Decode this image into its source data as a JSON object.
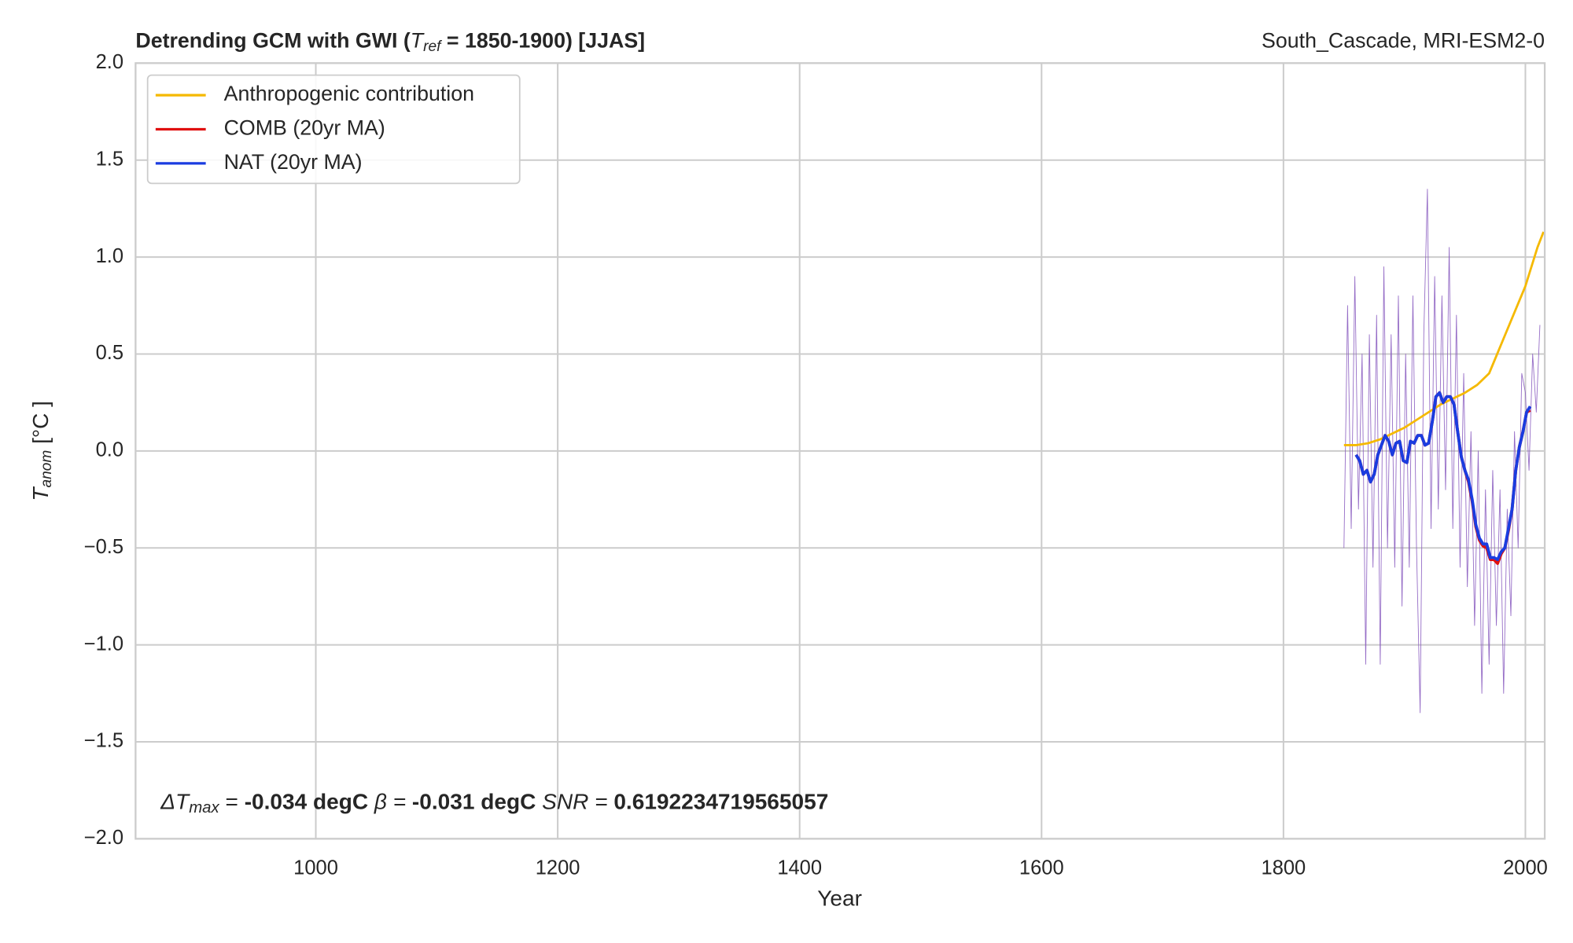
{
  "chart_data": {
    "type": "line",
    "title_parts": [
      "Detrending GCM with GWI (",
      "T",
      "ref",
      " = 1850-1900) [JJAS]"
    ],
    "right_title": "South_Cascade, MRI-ESM2-0",
    "x_label": "Year",
    "y_label_parts": [
      "T",
      "anom",
      " [°C ]"
    ],
    "annotation_parts": [
      "ΔT",
      "max",
      " = ",
      "-0.034 degC",
      " β = ",
      "-0.031 degC",
      " SNR = ",
      " 0.6192234719565057"
    ],
    "xlim": [
      851,
      2016
    ],
    "ylim": [
      -2,
      2
    ],
    "xticks": [
      1000,
      1200,
      1400,
      1600,
      1800,
      2000
    ],
    "yticks": [
      {
        "value": -2,
        "label": "−2.0"
      },
      {
        "value": -1.5,
        "label": "−1.5"
      },
      {
        "value": -1,
        "label": "−1.0"
      },
      {
        "value": -0.5,
        "label": "−0.5"
      },
      {
        "value": 0,
        "label": "0.0"
      },
      {
        "value": 0.5,
        "label": "0.5"
      },
      {
        "value": 1,
        "label": "1.0"
      },
      {
        "value": 1.5,
        "label": "1.5"
      },
      {
        "value": 2,
        "label": "2.0"
      }
    ],
    "grid": true,
    "legend": "upper left",
    "series": [
      {
        "color": "#8a5cc0",
        "x": [
          1850,
          1853,
          1856,
          1859,
          1862,
          1865,
          1868,
          1871,
          1874,
          1877,
          1880,
          1883,
          1886,
          1889,
          1892,
          1895,
          1898,
          1901,
          1904,
          1907,
          1910,
          1913,
          1916,
          1919,
          1922,
          1925,
          1928,
          1931,
          1934,
          1937,
          1940,
          1943,
          1946,
          1949,
          1952,
          1955,
          1958,
          1961,
          1964,
          1967,
          1970,
          1973,
          1976,
          1979,
          1982,
          1985,
          1988,
          1991,
          1994,
          1997,
          2000,
          2003,
          2006,
          2009,
          2012
        ],
        "values": [
          -0.5,
          0.75,
          -0.4,
          0.9,
          -0.3,
          0.5,
          -1.1,
          0.6,
          -0.6,
          0.7,
          -1.1,
          0.95,
          -0.5,
          0.6,
          -0.6,
          0.8,
          -0.8,
          0.5,
          -0.6,
          0.8,
          -0.5,
          -1.35,
          0.6,
          1.35,
          -0.4,
          0.9,
          -0.3,
          0.8,
          -0.2,
          1.05,
          -0.4,
          0.7,
          -0.6,
          0.4,
          -0.7,
          0.1,
          -0.9,
          0.0,
          -1.25,
          -0.2,
          -1.1,
          -0.1,
          -0.9,
          -0.2,
          -1.25,
          -0.3,
          -0.85,
          0.1,
          -0.5,
          0.4,
          0.3,
          -0.1,
          0.5,
          0.2,
          0.65
        ]
      },
      {
        "name": "Anthropogenic contribution",
        "color": "#f5b900",
        "x": [
          1850,
          1860,
          1870,
          1880,
          1890,
          1900,
          1910,
          1920,
          1930,
          1940,
          1950,
          1960,
          1970,
          1980,
          1990,
          2000,
          2010,
          2015
        ],
        "values": [
          0.03,
          0.03,
          0.04,
          0.06,
          0.09,
          0.12,
          0.16,
          0.2,
          0.24,
          0.27,
          0.3,
          0.34,
          0.4,
          0.55,
          0.7,
          0.85,
          1.05,
          1.13
        ]
      },
      {
        "name": "COMB (20yr MA)",
        "color": "#e01010",
        "x": [
          1860,
          1863,
          1866,
          1869,
          1872,
          1875,
          1878,
          1881,
          1884,
          1887,
          1890,
          1893,
          1896,
          1899,
          1902,
          1905,
          1908,
          1911,
          1914,
          1917,
          1920,
          1923,
          1926,
          1929,
          1932,
          1935,
          1938,
          1941,
          1944,
          1947,
          1950,
          1953,
          1956,
          1959,
          1962,
          1965,
          1968,
          1971,
          1974,
          1977,
          1980,
          1983,
          1986,
          1989,
          1992,
          1995,
          1998,
          2001,
          2004
        ],
        "values": [
          -0.02,
          -0.05,
          -0.12,
          -0.1,
          -0.16,
          -0.12,
          -0.02,
          0.03,
          0.08,
          0.05,
          -0.02,
          0.04,
          0.05,
          -0.05,
          -0.06,
          0.05,
          0.04,
          0.08,
          0.08,
          0.03,
          0.04,
          0.15,
          0.28,
          0.3,
          0.25,
          0.28,
          0.28,
          0.24,
          0.1,
          -0.03,
          -0.1,
          -0.16,
          -0.26,
          -0.39,
          -0.46,
          -0.49,
          -0.5,
          -0.56,
          -0.56,
          -0.58,
          -0.53,
          -0.5,
          -0.41,
          -0.3,
          -0.1,
          0.02,
          0.1,
          0.2,
          0.21
        ]
      },
      {
        "name": "NAT (20yr MA)",
        "color": "#1a3ce0",
        "x": [
          1860,
          1863,
          1866,
          1869,
          1872,
          1875,
          1878,
          1881,
          1884,
          1887,
          1890,
          1893,
          1896,
          1899,
          1902,
          1905,
          1908,
          1911,
          1914,
          1917,
          1920,
          1923,
          1926,
          1929,
          1932,
          1935,
          1938,
          1941,
          1944,
          1947,
          1950,
          1953,
          1956,
          1959,
          1962,
          1965,
          1968,
          1971,
          1974,
          1977,
          1980,
          1983,
          1986,
          1989,
          1992,
          1995,
          1998,
          2001,
          2004
        ],
        "values": [
          -0.02,
          -0.05,
          -0.12,
          -0.1,
          -0.16,
          -0.12,
          -0.02,
          0.03,
          0.08,
          0.05,
          -0.02,
          0.04,
          0.05,
          -0.05,
          -0.06,
          0.05,
          0.04,
          0.08,
          0.08,
          0.03,
          0.04,
          0.15,
          0.28,
          0.3,
          0.25,
          0.28,
          0.28,
          0.24,
          0.1,
          -0.03,
          -0.1,
          -0.15,
          -0.25,
          -0.38,
          -0.45,
          -0.48,
          -0.48,
          -0.55,
          -0.55,
          -0.56,
          -0.52,
          -0.5,
          -0.4,
          -0.3,
          -0.1,
          0.02,
          0.1,
          0.2,
          0.23
        ]
      }
    ]
  }
}
